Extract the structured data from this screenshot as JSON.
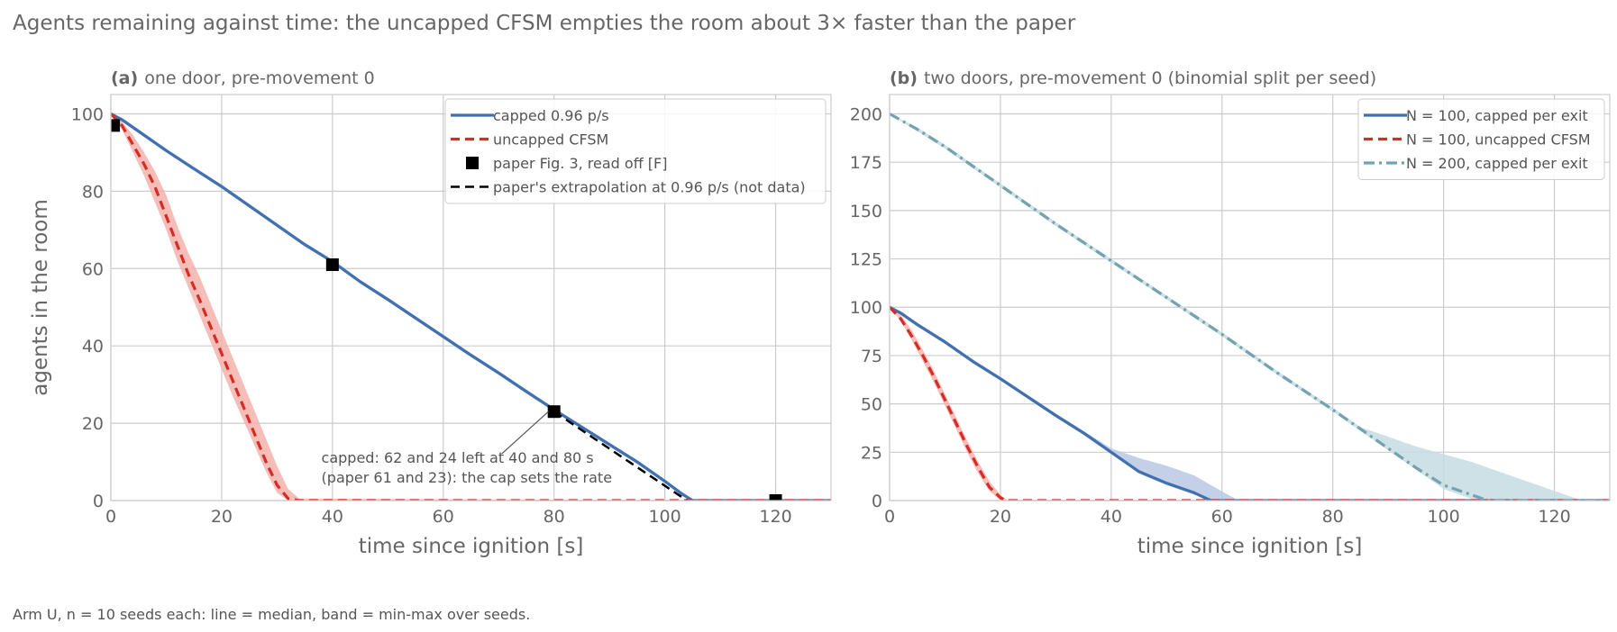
{
  "figure": {
    "suptitle": "Agents remaining against time: the uncapped CFSM empties the room about 3× faster than the paper",
    "footnote": "Arm U, n = 10 seeds each: line = median, band = min-max over seeds."
  },
  "colors": {
    "capped": "#4070b0",
    "capped_band": "#b8c8e4",
    "uncapped": "#d62c26",
    "uncapped_band": "#f4b3ad",
    "n200": "#73a2b0",
    "n200_band": "#c4dce2",
    "paper": "#000000",
    "grid": "#cccccc",
    "text": "#666666"
  },
  "chart_data": [
    {
      "type": "line",
      "panel_label": "(a)",
      "title": "one door, pre-movement 0",
      "xlabel": "time since ignition [s]",
      "ylabel": "agents in the room",
      "xlim": [
        0,
        130
      ],
      "ylim": [
        0,
        105
      ],
      "xticks": [
        0,
        20,
        40,
        60,
        80,
        100,
        120
      ],
      "yticks": [
        0,
        20,
        40,
        60,
        80,
        100
      ],
      "grid": true,
      "legend_position": "top-right",
      "series": [
        {
          "name": "capped 0.96 p/s",
          "style": "solid",
          "color_key": "capped",
          "x": [
            0,
            2,
            5,
            10,
            15,
            20,
            25,
            30,
            35,
            40,
            45,
            50,
            55,
            60,
            65,
            70,
            75,
            80,
            85,
            90,
            95,
            100,
            103,
            105,
            130
          ],
          "y": [
            100,
            98.5,
            95.5,
            90.5,
            85.8,
            81.2,
            76.2,
            71.2,
            66.2,
            61.8,
            56.6,
            52,
            47.2,
            42.4,
            37.6,
            33,
            28.2,
            23.5,
            19,
            14.5,
            10,
            5,
            1.8,
            0,
            0
          ],
          "band_lower": [
            100,
            98,
            95,
            90,
            85.3,
            80.7,
            75.7,
            70.7,
            65.7,
            61.3,
            56.1,
            51.5,
            46.7,
            41.9,
            37.1,
            32.5,
            27.7,
            23,
            18.5,
            14,
            9.5,
            4.5,
            1.2,
            0,
            0
          ],
          "band_upper": [
            100,
            99,
            96,
            91,
            86.3,
            81.7,
            76.7,
            71.7,
            66.7,
            62.3,
            57.1,
            52.5,
            47.7,
            42.9,
            38.1,
            33.5,
            28.7,
            24,
            19.5,
            15,
            10.5,
            5.5,
            2.4,
            0.4,
            0
          ]
        },
        {
          "name": "uncapped CFSM",
          "style": "dashed",
          "color_key": "uncapped",
          "x": [
            0,
            2,
            4,
            6,
            8,
            10,
            12,
            14,
            16,
            18,
            20,
            22,
            24,
            26,
            28,
            30,
            32,
            34,
            130
          ],
          "y": [
            100,
            97,
            92,
            87,
            81,
            73.5,
            66,
            58.5,
            52,
            45,
            38,
            31,
            24,
            17,
            10,
            4,
            0.5,
            0,
            0
          ],
          "band_lower": [
            100,
            96,
            90,
            84,
            77,
            70,
            62,
            55,
            48,
            41,
            34,
            27,
            20.5,
            14,
            7.5,
            2,
            0,
            0,
            0
          ],
          "band_upper": [
            100,
            98,
            94.5,
            90,
            85,
            79,
            71,
            64,
            58,
            51,
            44,
            37,
            30,
            23,
            16,
            9,
            3,
            0.5,
            0
          ]
        },
        {
          "name": "paper Fig. 3, read off [F]",
          "style": "markers",
          "color_key": "paper",
          "x": [
            0.5,
            40,
            80,
            120
          ],
          "y": [
            97,
            61,
            23,
            0
          ]
        },
        {
          "name": "paper's extrapolation at 0.96 p/s (not data)",
          "style": "dashed",
          "color_key": "paper",
          "x": [
            80,
            104
          ],
          "y": [
            23,
            0
          ]
        }
      ],
      "annotation": {
        "lines": [
          "capped: 62 and 24 left at 40 and 80 s",
          "(paper 61 and 23): the cap sets the rate"
        ],
        "text_x": 38,
        "text_y": 6,
        "arrow_to": [
          80,
          24
        ]
      }
    },
    {
      "type": "line",
      "panel_label": "(b)",
      "title": "two doors, pre-movement 0 (binomial split per seed)",
      "xlabel": "time since ignition [s]",
      "ylabel": "",
      "xlim": [
        0,
        130
      ],
      "ylim": [
        0,
        210
      ],
      "xticks": [
        0,
        20,
        40,
        60,
        80,
        100,
        120
      ],
      "yticks": [
        0,
        25,
        50,
        75,
        100,
        125,
        150,
        175,
        200
      ],
      "grid": true,
      "legend_position": "top-right",
      "series": [
        {
          "name": "N = 100, capped per exit",
          "style": "solid",
          "color_key": "capped",
          "x": [
            0,
            2,
            5,
            10,
            15,
            20,
            25,
            30,
            35,
            40,
            45,
            50,
            55,
            58,
            130
          ],
          "y": [
            100,
            97,
            91,
            82,
            72,
            63,
            53.5,
            44,
            35,
            25,
            15,
            9,
            4,
            0,
            0
          ],
          "band_lower": [
            100,
            96,
            90,
            81,
            71,
            62,
            52.5,
            43,
            34,
            24,
            14,
            8,
            3,
            0,
            0
          ],
          "band_upper": [
            100,
            98,
            92,
            83,
            73,
            64,
            54.5,
            45,
            36,
            27,
            22,
            18,
            13,
            8,
            0
          ],
          "band_x": [
            0,
            2,
            5,
            10,
            15,
            20,
            25,
            30,
            35,
            40,
            45,
            50,
            55,
            58,
            63
          ]
        },
        {
          "name": "N = 100, uncapped CFSM",
          "style": "dashed",
          "color_key": "uncapped",
          "x": [
            0,
            2,
            4,
            6,
            8,
            10,
            12,
            14,
            16,
            18,
            20,
            21,
            130
          ],
          "y": [
            100,
            94,
            85,
            75,
            64,
            52,
            40,
            28,
            17,
            7,
            1.5,
            0,
            0
          ],
          "band_lower": [
            100,
            93,
            83,
            72,
            61,
            49,
            37,
            25,
            14,
            5,
            0,
            0,
            0
          ],
          "band_upper": [
            100,
            96,
            88,
            78,
            67,
            55,
            43,
            31,
            20,
            10,
            3,
            0.5,
            0
          ]
        },
        {
          "name": "N = 200, capped per exit",
          "style": "dashdot",
          "color_key": "n200",
          "x": [
            0,
            5,
            10,
            20,
            30,
            40,
            50,
            60,
            70,
            80,
            85,
            90,
            95,
            100,
            105,
            108,
            130
          ],
          "y": [
            200,
            192,
            183,
            163,
            143,
            124,
            105,
            86,
            66,
            47,
            37,
            27,
            17,
            8,
            3,
            0,
            0
          ],
          "band_lower": [
            200,
            191,
            182,
            162,
            142,
            123,
            104,
            85,
            65,
            46,
            36,
            26,
            16,
            6,
            1,
            0,
            0
          ],
          "band_upper": [
            200,
            193,
            184,
            164,
            144,
            125,
            106,
            87,
            67,
            48,
            38,
            33,
            28,
            24,
            20,
            13,
            0
          ],
          "band_x": [
            0,
            5,
            10,
            20,
            30,
            40,
            50,
            60,
            70,
            80,
            85,
            90,
            95,
            100,
            105,
            112,
            125
          ]
        }
      ]
    }
  ]
}
